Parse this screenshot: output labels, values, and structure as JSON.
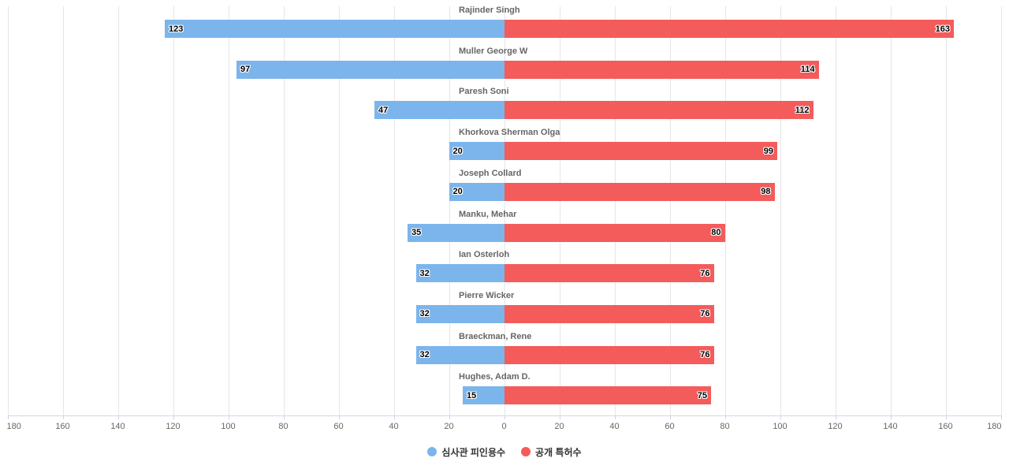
{
  "chart_data": {
    "type": "bar",
    "subtype": "diverging-horizontal",
    "title": "",
    "categories": [
      "Rajinder Singh",
      "Muller George W",
      "Paresh Soni",
      "Khorkova Sherman Olga",
      "Joseph Collard",
      "Manku, Mehar",
      "Ian Osterloh",
      "Pierre Wicker",
      "Braeckman, Rene",
      "Hughes, Adam D."
    ],
    "series": [
      {
        "name": "심사관 피인용수",
        "color": "#7cb5ec",
        "direction": "left",
        "values": [
          123,
          97,
          47,
          20,
          20,
          35,
          32,
          32,
          32,
          15
        ]
      },
      {
        "name": "공개 특허수",
        "color": "#f45b5b",
        "direction": "right",
        "values": [
          163,
          114,
          112,
          99,
          98,
          80,
          76,
          76,
          76,
          75
        ]
      }
    ],
    "xaxis": {
      "min": 0,
      "max": 180,
      "tick_interval": 20,
      "tick_labels": [
        "180",
        "160",
        "140",
        "120",
        "100",
        "80",
        "60",
        "40",
        "20",
        "0",
        "20",
        "40",
        "60",
        "80",
        "100",
        "120",
        "140",
        "160",
        "180"
      ],
      "label_color": "#666666"
    },
    "grid": {
      "show": true,
      "color": "#e6e6e6"
    },
    "axis_line_color": "#ccd6eb",
    "category_label_color": "#666666",
    "value_label_color": "#000000",
    "legend_position": "bottom-center",
    "background": "#ffffff"
  }
}
